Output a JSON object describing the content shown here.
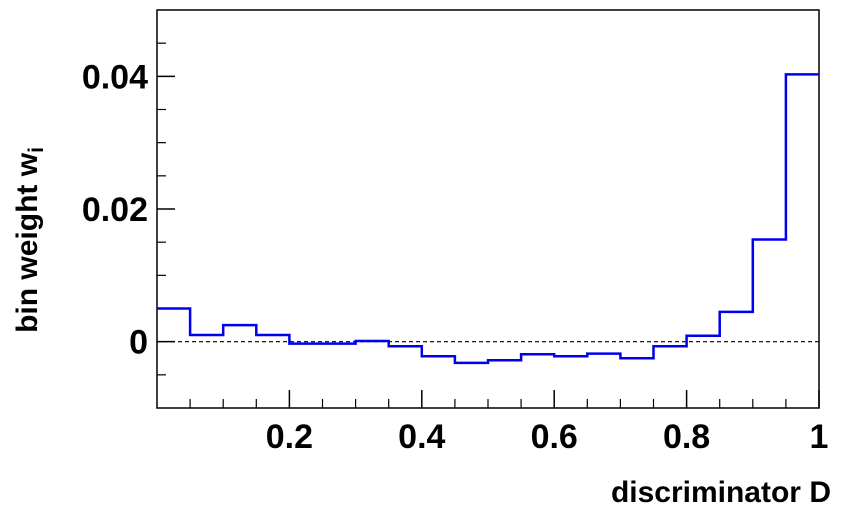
{
  "chart_data": {
    "type": "histogram-step",
    "title": "",
    "xlabel": "discriminator D",
    "ylabel": "bin weight w",
    "ylabel_subscript": "i",
    "xlim": [
      0,
      1
    ],
    "ylim": [
      -0.01,
      0.05
    ],
    "grid": false,
    "legend": "none",
    "x_ticks": [
      0.2,
      0.4,
      0.6,
      0.8,
      1
    ],
    "x_tick_labels": [
      "0.2",
      "0.4",
      "0.6",
      "0.8",
      "1"
    ],
    "y_ticks": [
      0,
      0.02,
      0.04
    ],
    "y_tick_labels": [
      "0",
      "0.02",
      "0.04"
    ],
    "reference_line": {
      "y": 0,
      "style": "dashed"
    },
    "bin_edges": [
      0,
      0.05,
      0.1,
      0.15,
      0.2,
      0.25,
      0.3,
      0.35,
      0.4,
      0.45,
      0.5,
      0.55,
      0.6,
      0.65,
      0.7,
      0.75,
      0.8,
      0.85,
      0.9,
      0.95,
      1.0
    ],
    "series": [
      {
        "values": [
          0.005,
          0.001,
          0.0025,
          0.001,
          -0.0003,
          -0.0003,
          0.0001,
          -0.0007,
          -0.0022,
          -0.0032,
          -0.0028,
          -0.0019,
          -0.0022,
          -0.0018,
          -0.0025,
          -0.0007,
          0.0009,
          0.0045,
          0.0154,
          0.0403
        ],
        "color": "#0000ee"
      }
    ]
  }
}
